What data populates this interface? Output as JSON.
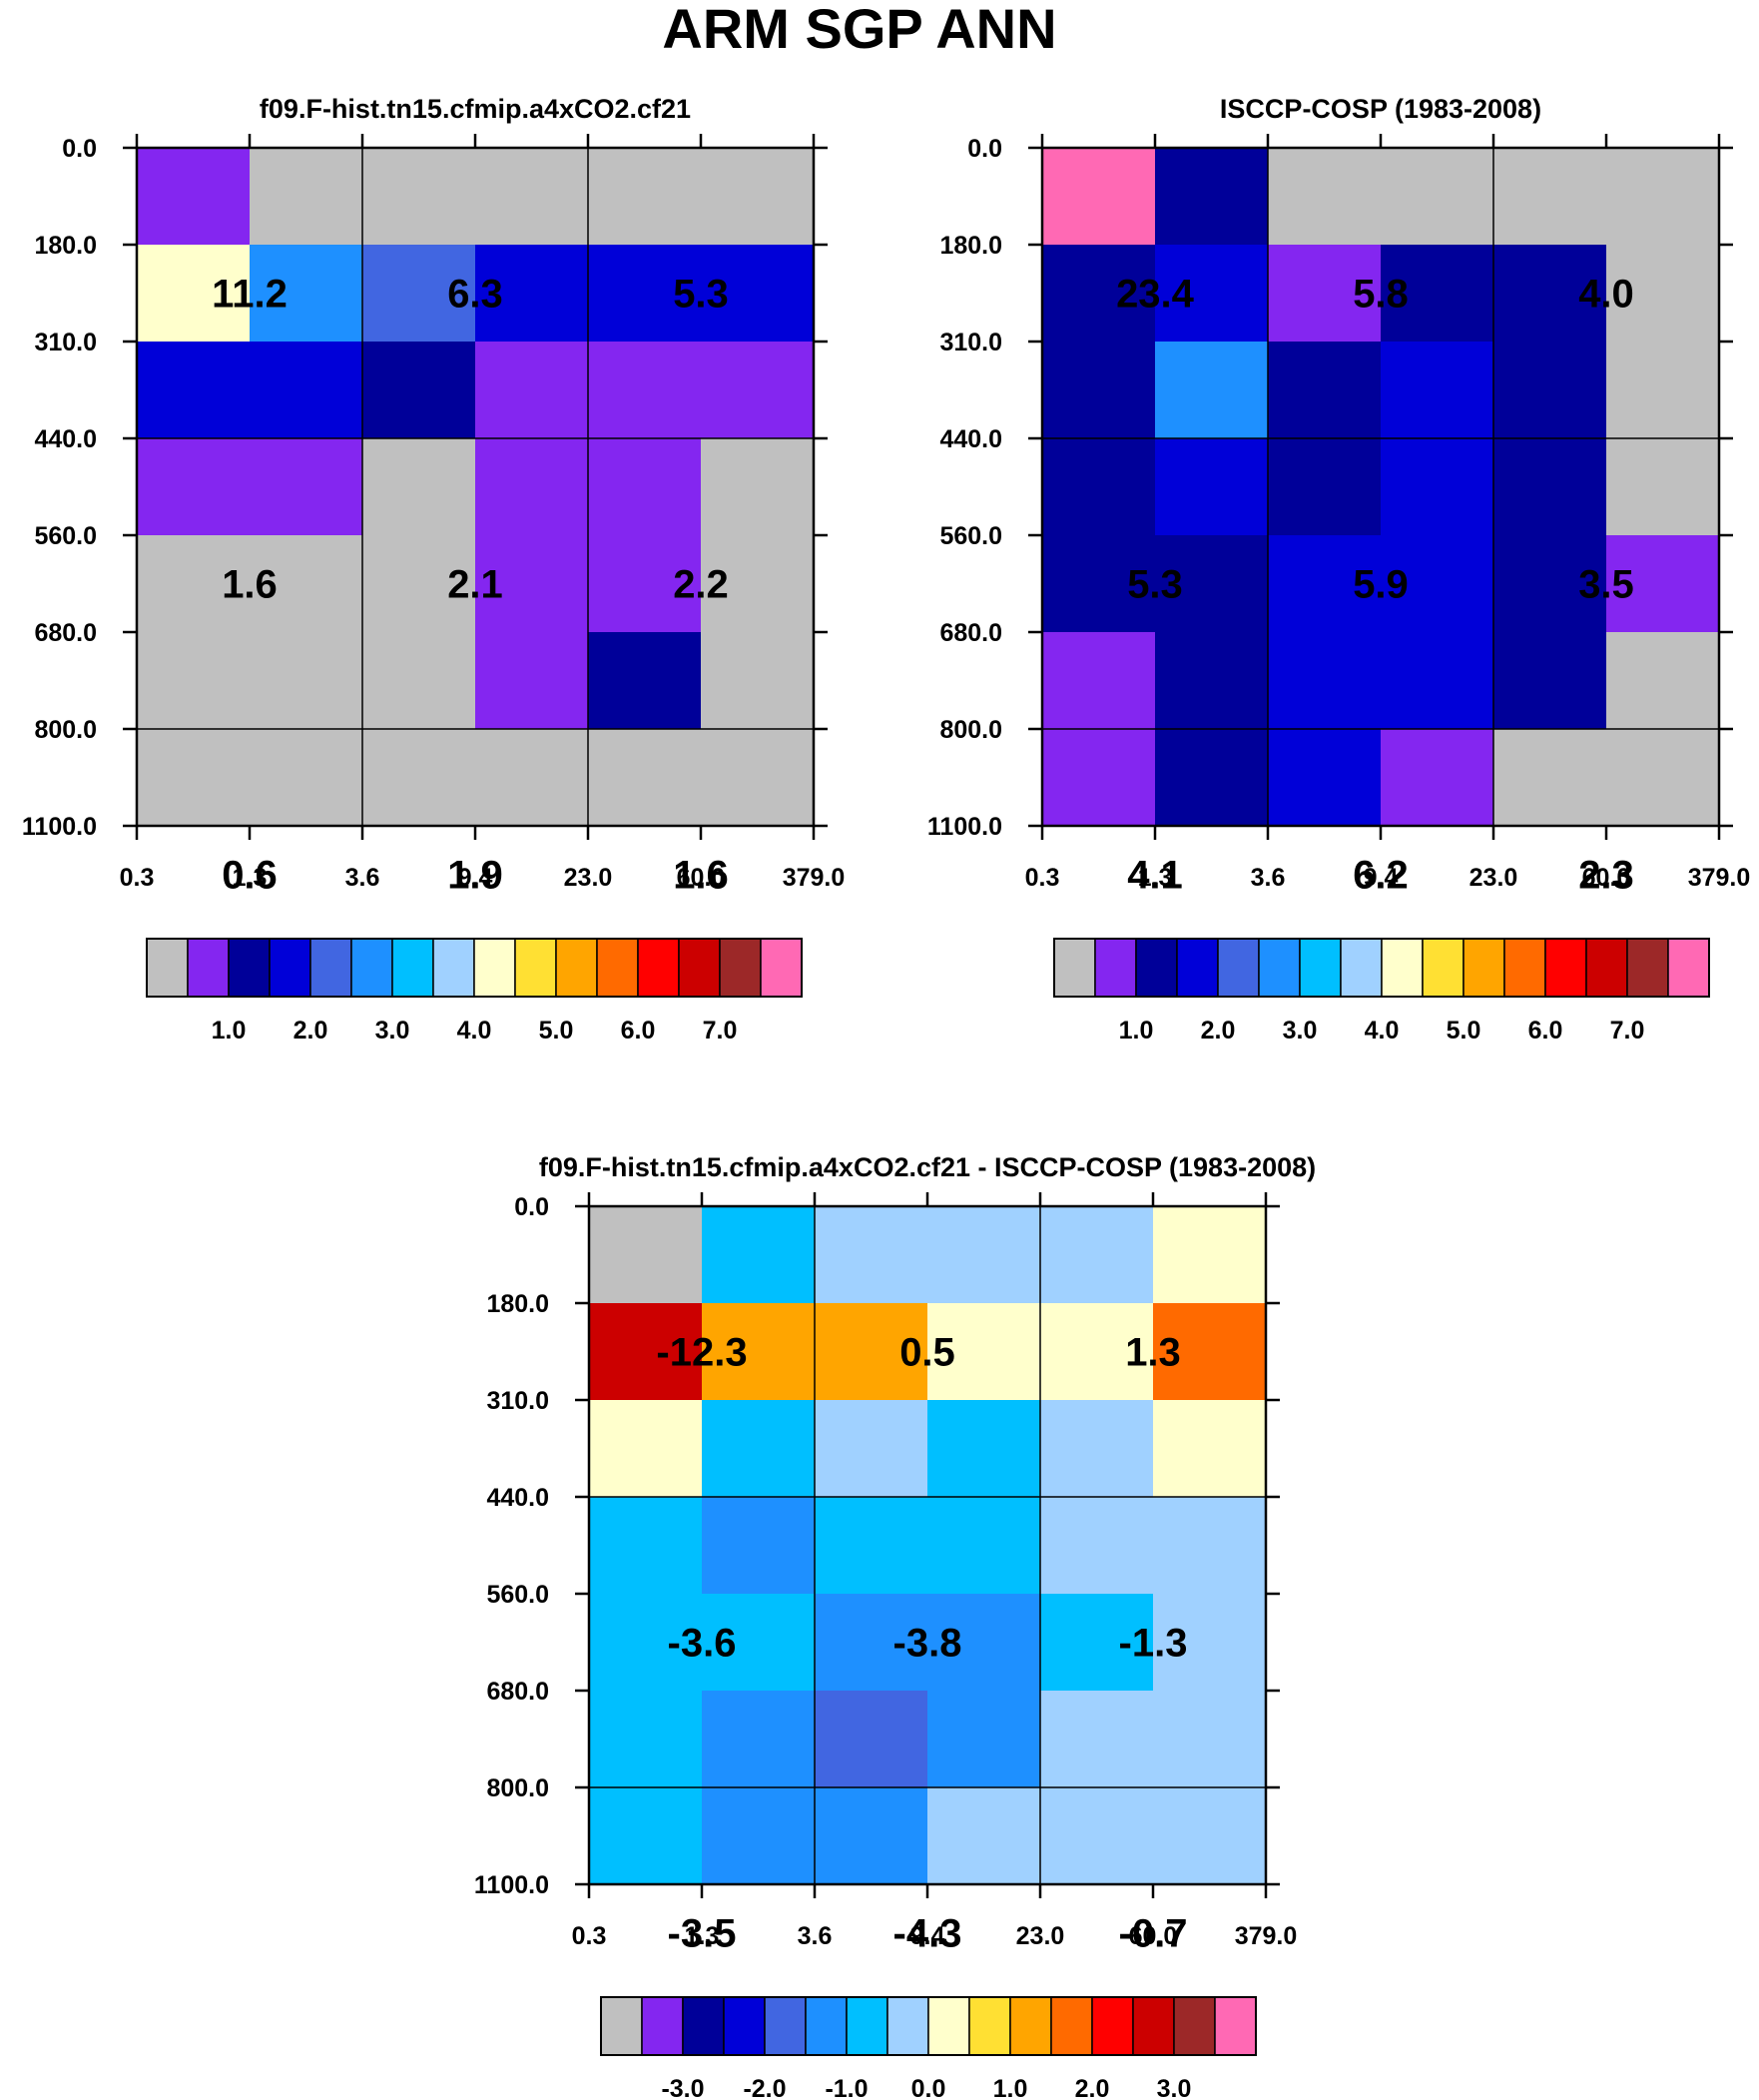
{
  "page_title": "ARM SGP ANN",
  "palette": [
    "#c0c0c0",
    "#8426f0",
    "#000099",
    "#0000d8",
    "#4166e1",
    "#1e90ff",
    "#00bfff",
    "#a0d1ff",
    "#ffffcc",
    "#ffe033",
    "#ffa500",
    "#ff6a00",
    "#ff0000",
    "#cc0000",
    "#9c2828",
    "#ff69b4"
  ],
  "x_tick_labels": [
    "0.3",
    "1.3",
    "3.6",
    "9.4",
    "23.0",
    "60.0",
    "379.0"
  ],
  "y_tick_labels": [
    "0.0",
    "180.0",
    "310.0",
    "440.0",
    "560.0",
    "680.0",
    "800.0",
    "1100.0"
  ],
  "chart_data": [
    {
      "type": "heatmap",
      "title": "f09.F-hist.tn15.cfmip.a4xCO2.cf21",
      "x_bins": [
        "0.3",
        "1.3",
        "3.6",
        "9.4",
        "23.0",
        "60.0",
        "379.0"
      ],
      "y_bins": [
        "0.0",
        "180.0",
        "310.0",
        "440.0",
        "560.0",
        "680.0",
        "800.0",
        "1100.0"
      ],
      "cell_color_index": [
        [
          1,
          0,
          0,
          0,
          0,
          0
        ],
        [
          8,
          5,
          4,
          3,
          3,
          3
        ],
        [
          3,
          3,
          2,
          1,
          1,
          1
        ],
        [
          1,
          1,
          0,
          1,
          1,
          0
        ],
        [
          0,
          0,
          0,
          1,
          1,
          0
        ],
        [
          0,
          0,
          0,
          1,
          2,
          0
        ],
        [
          0,
          0,
          0,
          0,
          0,
          0
        ]
      ],
      "box_labels": [
        {
          "row": 0,
          "col": 0,
          "value": "11.2"
        },
        {
          "row": 0,
          "col": 1,
          "value": "6.3"
        },
        {
          "row": 0,
          "col": 2,
          "value": "5.3"
        },
        {
          "row": 1,
          "col": 0,
          "value": "1.6"
        },
        {
          "row": 1,
          "col": 1,
          "value": "2.1"
        },
        {
          "row": 1,
          "col": 2,
          "value": "2.2"
        },
        {
          "row": 2,
          "col": 0,
          "value": "0.6"
        },
        {
          "row": 2,
          "col": 1,
          "value": "1.9"
        },
        {
          "row": 2,
          "col": 2,
          "value": "1.6"
        }
      ],
      "colorbar": {
        "labels": [
          "1.0",
          "2.0",
          "3.0",
          "4.0",
          "5.0",
          "6.0",
          "7.0"
        ],
        "label_start_boundary": 2
      }
    },
    {
      "type": "heatmap",
      "title": "ISCCP-COSP (1983-2008)",
      "x_bins": [
        "0.3",
        "1.3",
        "3.6",
        "9.4",
        "23.0",
        "60.0",
        "379.0"
      ],
      "y_bins": [
        "0.0",
        "180.0",
        "310.0",
        "440.0",
        "560.0",
        "680.0",
        "800.0",
        "1100.0"
      ],
      "cell_color_index": [
        [
          15,
          2,
          0,
          0,
          0,
          0
        ],
        [
          2,
          3,
          1,
          2,
          2,
          0
        ],
        [
          2,
          5,
          2,
          3,
          2,
          0
        ],
        [
          2,
          3,
          2,
          3,
          2,
          0
        ],
        [
          2,
          2,
          3,
          3,
          2,
          1
        ],
        [
          1,
          2,
          3,
          3,
          2,
          0
        ],
        [
          1,
          2,
          3,
          1,
          0,
          0
        ]
      ],
      "box_labels": [
        {
          "row": 0,
          "col": 0,
          "value": "23.4"
        },
        {
          "row": 0,
          "col": 1,
          "value": "5.8"
        },
        {
          "row": 0,
          "col": 2,
          "value": "4.0"
        },
        {
          "row": 1,
          "col": 0,
          "value": "5.3"
        },
        {
          "row": 1,
          "col": 1,
          "value": "5.9"
        },
        {
          "row": 1,
          "col": 2,
          "value": "3.5"
        },
        {
          "row": 2,
          "col": 0,
          "value": "4.1"
        },
        {
          "row": 2,
          "col": 1,
          "value": "6.2"
        },
        {
          "row": 2,
          "col": 2,
          "value": "2.3"
        }
      ],
      "colorbar": {
        "labels": [
          "1.0",
          "2.0",
          "3.0",
          "4.0",
          "5.0",
          "6.0",
          "7.0"
        ],
        "label_start_boundary": 2
      }
    },
    {
      "type": "heatmap",
      "title": "f09.F-hist.tn15.cfmip.a4xCO2.cf21 - ISCCP-COSP (1983-2008)",
      "x_bins": [
        "0.3",
        "1.3",
        "3.6",
        "9.4",
        "23.0",
        "60.0",
        "379.0"
      ],
      "y_bins": [
        "0.0",
        "180.0",
        "310.0",
        "440.0",
        "560.0",
        "680.0",
        "800.0",
        "1100.0"
      ],
      "cell_color_index": [
        [
          0,
          6,
          7,
          7,
          7,
          8
        ],
        [
          13,
          10,
          10,
          8,
          8,
          11
        ],
        [
          8,
          6,
          7,
          6,
          7,
          8
        ],
        [
          6,
          5,
          6,
          6,
          7,
          7
        ],
        [
          6,
          6,
          5,
          5,
          6,
          7
        ],
        [
          6,
          5,
          4,
          5,
          7,
          7
        ],
        [
          6,
          5,
          5,
          7,
          7,
          7
        ]
      ],
      "box_labels": [
        {
          "row": 0,
          "col": 0,
          "value": "-12.3"
        },
        {
          "row": 0,
          "col": 1,
          "value": "0.5"
        },
        {
          "row": 0,
          "col": 2,
          "value": "1.3"
        },
        {
          "row": 1,
          "col": 0,
          "value": "-3.6"
        },
        {
          "row": 1,
          "col": 1,
          "value": "-3.8"
        },
        {
          "row": 1,
          "col": 2,
          "value": "-1.3"
        },
        {
          "row": 2,
          "col": 0,
          "value": "-3.5"
        },
        {
          "row": 2,
          "col": 1,
          "value": "-4.3"
        },
        {
          "row": 2,
          "col": 2,
          "value": "-0.7"
        }
      ],
      "colorbar": {
        "labels": [
          "-3.0",
          "-2.0",
          "-1.0",
          "0.0",
          "1.0",
          "2.0",
          "3.0"
        ],
        "label_start_boundary": 2
      }
    }
  ]
}
